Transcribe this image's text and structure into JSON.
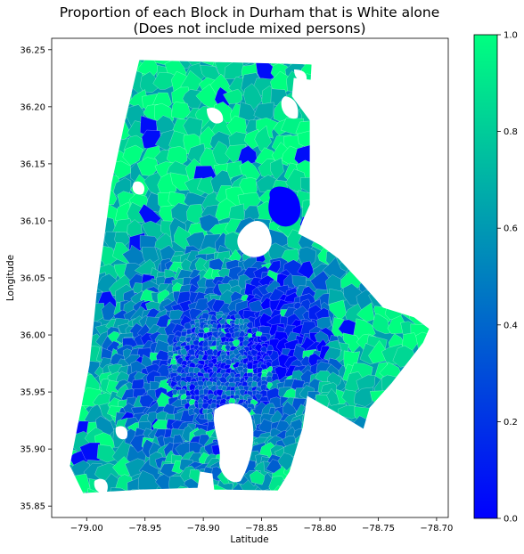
{
  "chart_data": {
    "type": "choropleth",
    "title_line1": "Proportion of each Block in Durham that is White alone",
    "title_line2": "(Does not include mixed persons)",
    "xlabel": "Latitude",
    "ylabel": "Longitude",
    "xlim": [
      -79.03,
      -78.69
    ],
    "ylim": [
      35.84,
      36.26
    ],
    "x_ticks": [
      -79.0,
      -78.95,
      -78.9,
      -78.85,
      -78.8,
      -78.75,
      -78.7
    ],
    "x_tick_labels": [
      "−79.00",
      "−78.95",
      "−78.90",
      "−78.85",
      "−78.80",
      "−78.75",
      "−78.70"
    ],
    "y_ticks": [
      35.85,
      35.9,
      35.95,
      36.0,
      36.05,
      36.1,
      36.15,
      36.2,
      36.25
    ],
    "y_tick_labels": [
      "35.85",
      "35.90",
      "35.95",
      "36.00",
      "36.05",
      "36.10",
      "36.15",
      "36.20",
      "36.25"
    ],
    "colorbar": {
      "colormap": "winter",
      "min": 0.0,
      "max": 1.0,
      "ticks": [
        0.0,
        0.2,
        0.4,
        0.6,
        0.8,
        1.0
      ],
      "tick_labels": [
        "0.0",
        "0.2",
        "0.4",
        "0.6",
        "0.8",
        "1.0"
      ],
      "color_low": "#0000ff",
      "color_high": "#00ff80"
    },
    "grid": false
  }
}
